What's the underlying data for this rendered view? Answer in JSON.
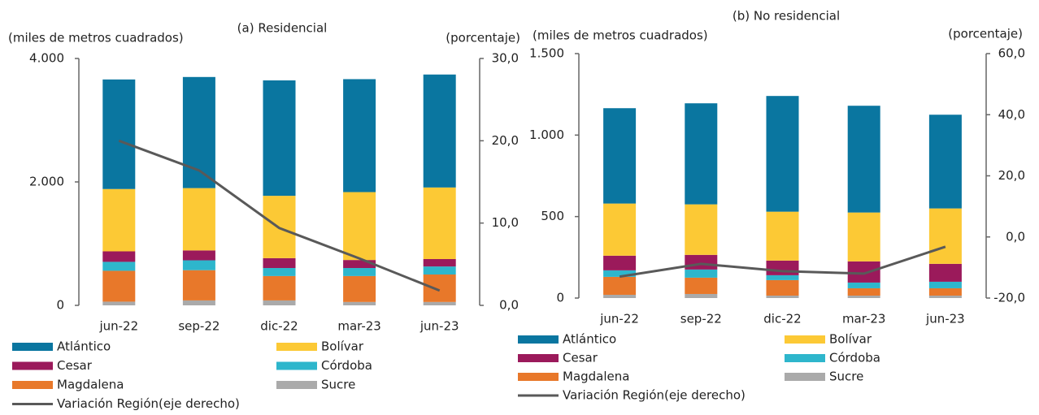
{
  "chart_data": [
    {
      "type": "bar",
      "stacked": true,
      "title": "(a) Residencial",
      "ylabel": "(miles de metros cuadrados)",
      "y2label": "(porcentaje)",
      "categories": [
        "jun-22",
        "sep-22",
        "dic-22",
        "mar-23",
        "jun-23"
      ],
      "ylim": [
        0,
        4000
      ],
      "yticks": [
        0,
        {
          "value": 2000,
          "label": "2.000"
        },
        {
          "value": 4000,
          "label": "4.000"
        }
      ],
      "y2lim": [
        0,
        30
      ],
      "y2ticks": [
        {
          "value": 0,
          "label": "0,0"
        },
        {
          "value": 10,
          "label": "10,0"
        },
        {
          "value": 20,
          "label": "20,0"
        },
        {
          "value": 30,
          "label": "30,0"
        }
      ],
      "series": [
        {
          "name": "Atlántico",
          "color": "#0a76a0",
          "values": [
            1775,
            1800,
            1870,
            1830,
            1830
          ]
        },
        {
          "name": "Bolívar",
          "color": "#fcc935",
          "values": [
            1010,
            1010,
            1010,
            1100,
            1160
          ]
        },
        {
          "name": "Cesar",
          "color": "#9b1a5b",
          "values": [
            170,
            160,
            160,
            130,
            120
          ]
        },
        {
          "name": "Córdoba",
          "color": "#2eb6cc",
          "values": [
            145,
            160,
            130,
            130,
            130
          ]
        },
        {
          "name": "Magdalena",
          "color": "#e8782a",
          "values": [
            500,
            490,
            395,
            420,
            445
          ]
        },
        {
          "name": "Sucre",
          "color": "#aaaaaa",
          "values": [
            60,
            80,
            80,
            55,
            55
          ]
        },
        {
          "name": "Variación Región(eje derecho)",
          "color": "#595959",
          "type": "line",
          "axis": "y2",
          "values": [
            20,
            16.4,
            9.4,
            5.7,
            1.8
          ]
        }
      ]
    },
    {
      "type": "bar",
      "stacked": true,
      "title": "(b) No residencial",
      "ylabel": "(miles de metros cuadrados)",
      "y2label": "(porcentaje)",
      "categories": [
        "jun-22",
        "sep-22",
        "dic-22",
        "mar-23",
        "jun-23"
      ],
      "ylim": [
        0,
        1500
      ],
      "yticks": [
        0,
        500,
        {
          "value": 1000,
          "label": "1.000"
        },
        {
          "value": 1500,
          "label": "1.500"
        }
      ],
      "y2lim": [
        -20,
        60
      ],
      "y2ticks": [
        {
          "value": -20,
          "label": "-20,0"
        },
        {
          "value": 0,
          "label": "0,0"
        },
        {
          "value": 20,
          "label": "20,0"
        },
        {
          "value": 40,
          "label": "40,0"
        },
        {
          "value": 60,
          "label": "60,0"
        }
      ],
      "series": [
        {
          "name": "Atlántico",
          "color": "#0a76a0",
          "values": [
            585,
            620,
            710,
            655,
            575
          ]
        },
        {
          "name": "Bolívar",
          "color": "#fcc935",
          "values": [
            320,
            310,
            300,
            300,
            340
          ]
        },
        {
          "name": "Cesar",
          "color": "#9b1a5b",
          "values": [
            90,
            90,
            90,
            130,
            110
          ]
        },
        {
          "name": "Córdoba",
          "color": "#2eb6cc",
          "values": [
            40,
            50,
            30,
            35,
            40
          ]
        },
        {
          "name": "Magdalena",
          "color": "#e8782a",
          "values": [
            110,
            100,
            95,
            45,
            45
          ]
        },
        {
          "name": "Sucre",
          "color": "#aaaaaa",
          "values": [
            20,
            25,
            15,
            15,
            15
          ]
        },
        {
          "name": "Variación Región(eje derecho)",
          "color": "#595959",
          "type": "line",
          "axis": "y2",
          "values": [
            -13,
            -8.8,
            -11.2,
            -12,
            -3.2
          ]
        }
      ]
    }
  ]
}
